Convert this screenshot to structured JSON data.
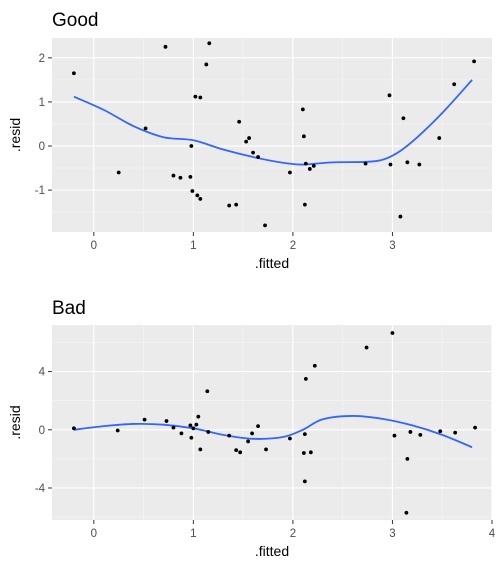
{
  "chart_data": [
    {
      "type": "scatter",
      "title": "Good",
      "xlabel": ".fitted",
      "ylabel": ".resid",
      "xlim": [
        -0.42,
        4.0
      ],
      "ylim": [
        -1.95,
        2.45
      ],
      "xticks": [
        0,
        1,
        2,
        3
      ],
      "yticks": [
        -1,
        0,
        1,
        2
      ],
      "xtick_labels": [
        "0",
        "1",
        "2",
        "3"
      ],
      "ytick_labels": [
        "-1",
        "0",
        "1",
        "2"
      ],
      "grid": true,
      "point_color": "#000000",
      "smooth_color": "#3366FF",
      "points": [
        [
          -0.2,
          1.65
        ],
        [
          0.25,
          -0.6
        ],
        [
          0.52,
          0.4
        ],
        [
          0.72,
          2.25
        ],
        [
          0.8,
          -0.67
        ],
        [
          0.87,
          -0.72
        ],
        [
          0.97,
          -0.7
        ],
        [
          0.98,
          0.0
        ],
        [
          0.99,
          -1.02
        ],
        [
          1.02,
          1.12
        ],
        [
          1.04,
          -1.12
        ],
        [
          1.07,
          -1.2
        ],
        [
          1.07,
          1.1
        ],
        [
          1.13,
          1.85
        ],
        [
          1.16,
          2.33
        ],
        [
          1.36,
          -1.35
        ],
        [
          1.43,
          -1.33
        ],
        [
          1.46,
          0.55
        ],
        [
          1.53,
          0.1
        ],
        [
          1.56,
          0.18
        ],
        [
          1.6,
          -0.15
        ],
        [
          1.65,
          -0.25
        ],
        [
          1.72,
          -1.8
        ],
        [
          1.97,
          -0.6
        ],
        [
          2.1,
          0.83
        ],
        [
          2.11,
          0.22
        ],
        [
          2.12,
          -1.33
        ],
        [
          2.13,
          -0.4
        ],
        [
          2.17,
          -0.52
        ],
        [
          2.21,
          -0.45
        ],
        [
          2.73,
          -0.4
        ],
        [
          2.97,
          1.15
        ],
        [
          2.98,
          -0.42
        ],
        [
          3.08,
          -1.6
        ],
        [
          3.11,
          0.63
        ],
        [
          3.15,
          -0.37
        ],
        [
          3.27,
          -0.42
        ],
        [
          3.47,
          0.18
        ],
        [
          3.62,
          1.4
        ],
        [
          3.82,
          1.92
        ]
      ],
      "smooth": [
        [
          -0.2,
          1.12
        ],
        [
          0.1,
          0.82
        ],
        [
          0.4,
          0.45
        ],
        [
          0.7,
          0.2
        ],
        [
          1.0,
          0.13
        ],
        [
          1.3,
          -0.08
        ],
        [
          1.6,
          -0.25
        ],
        [
          1.9,
          -0.38
        ],
        [
          2.1,
          -0.42
        ],
        [
          2.4,
          -0.37
        ],
        [
          2.8,
          -0.35
        ],
        [
          3.0,
          -0.22
        ],
        [
          3.2,
          0.1
        ],
        [
          3.5,
          0.75
        ],
        [
          3.8,
          1.5
        ]
      ]
    },
    {
      "type": "scatter",
      "title": "Bad",
      "xlabel": ".fitted",
      "ylabel": ".resid",
      "xlim": [
        -0.42,
        4.0
      ],
      "ylim": [
        -6.2,
        7.2
      ],
      "xticks": [
        0,
        1,
        2,
        3,
        4
      ],
      "yticks": [
        -4,
        0,
        4
      ],
      "xtick_labels": [
        "0",
        "1",
        "2",
        "3",
        "4"
      ],
      "ytick_labels": [
        "-4",
        "0",
        "4"
      ],
      "grid": true,
      "point_color": "#000000",
      "smooth_color": "#3366FF",
      "points": [
        [
          -0.2,
          0.1
        ],
        [
          0.24,
          -0.05
        ],
        [
          0.51,
          0.7
        ],
        [
          0.73,
          0.6
        ],
        [
          0.8,
          0.15
        ],
        [
          0.88,
          -0.25
        ],
        [
          0.97,
          0.3
        ],
        [
          0.98,
          -0.55
        ],
        [
          1.0,
          0.1
        ],
        [
          1.03,
          0.35
        ],
        [
          1.05,
          0.9
        ],
        [
          1.07,
          -1.35
        ],
        [
          1.14,
          2.65
        ],
        [
          1.15,
          -0.15
        ],
        [
          1.36,
          -0.4
        ],
        [
          1.43,
          -1.4
        ],
        [
          1.47,
          -1.55
        ],
        [
          1.55,
          -0.8
        ],
        [
          1.59,
          -0.25
        ],
        [
          1.65,
          0.25
        ],
        [
          1.73,
          -1.35
        ],
        [
          1.97,
          -0.6
        ],
        [
          2.11,
          -1.6
        ],
        [
          2.12,
          -0.3
        ],
        [
          2.12,
          -3.55
        ],
        [
          2.13,
          3.5
        ],
        [
          2.18,
          -1.55
        ],
        [
          2.22,
          4.4
        ],
        [
          2.74,
          5.65
        ],
        [
          3.0,
          6.65
        ],
        [
          3.02,
          -0.4
        ],
        [
          3.14,
          -5.7
        ],
        [
          3.15,
          -2.0
        ],
        [
          3.18,
          -0.15
        ],
        [
          3.28,
          -0.35
        ],
        [
          3.48,
          -0.1
        ],
        [
          3.63,
          -0.2
        ],
        [
          3.83,
          0.15
        ]
      ],
      "smooth": [
        [
          -0.2,
          0.0
        ],
        [
          0.1,
          0.25
        ],
        [
          0.4,
          0.4
        ],
        [
          0.7,
          0.35
        ],
        [
          1.0,
          0.1
        ],
        [
          1.3,
          -0.35
        ],
        [
          1.6,
          -0.62
        ],
        [
          1.9,
          -0.5
        ],
        [
          2.1,
          0.0
        ],
        [
          2.3,
          0.72
        ],
        [
          2.6,
          0.95
        ],
        [
          2.9,
          0.75
        ],
        [
          3.2,
          0.3
        ],
        [
          3.5,
          -0.35
        ],
        [
          3.8,
          -1.2
        ]
      ]
    }
  ]
}
